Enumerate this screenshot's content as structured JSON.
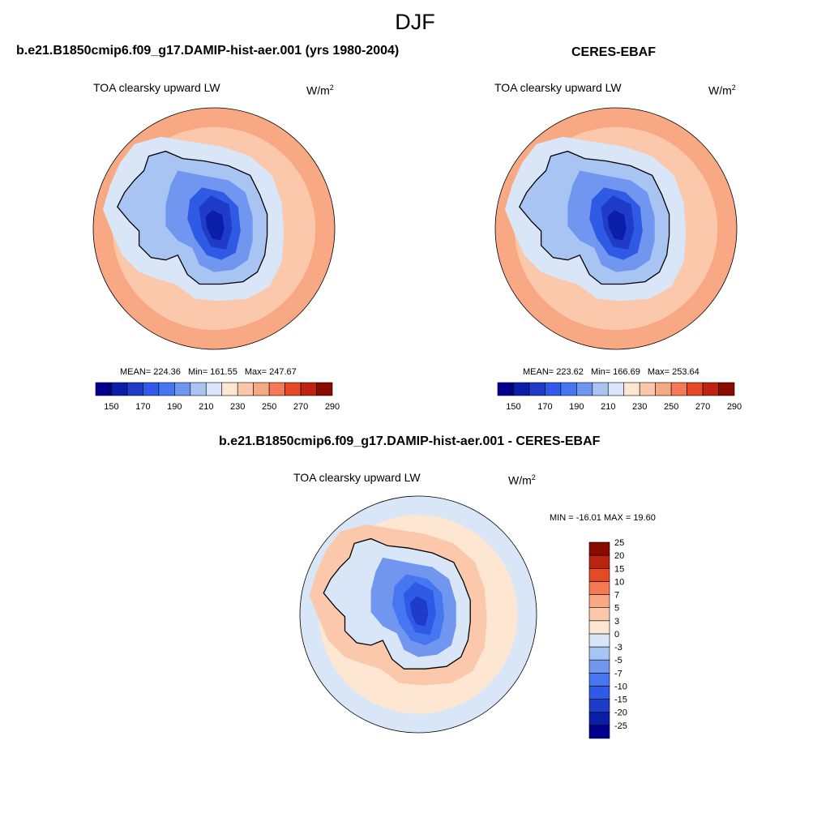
{
  "figure": {
    "title": "DJF",
    "units_base": "W/m",
    "units_exp": "2"
  },
  "panels": {
    "model": {
      "title": "b.e21.B1850cmip6.f09_g17.DAMIP-hist-aer.001 (yrs 1980-2004)",
      "variable": "TOA clearsky upward LW",
      "mean_text": "MEAN= 224.36",
      "min_text": "Min= 161.55",
      "max_text": "Max= 247.67"
    },
    "obs": {
      "title": "CERES-EBAF",
      "variable": "TOA clearsky upward LW",
      "mean_text": "MEAN= 223.62",
      "min_text": "Min= 166.69",
      "max_text": "Max= 253.64"
    },
    "diff": {
      "title": "b.e21.B1850cmip6.f09_g17.DAMIP-hist-aer.001 - CERES-EBAF",
      "variable": "TOA clearsky upward LW",
      "minmax_text": "MIN = -16.01 MAX =  19.60"
    }
  },
  "chart_data": [
    {
      "type": "heatmap",
      "name": "model",
      "projection": "south-polar-stereographic",
      "variable": "TOA clearsky upward LW",
      "units": "W/m2",
      "mean": 224.36,
      "min": 161.55,
      "max": 247.67,
      "colorbar": {
        "levels": [
          150,
          160,
          170,
          180,
          190,
          200,
          210,
          220,
          230,
          240,
          250,
          260,
          270,
          280,
          290
        ],
        "tick_labels": [
          "150",
          "170",
          "190",
          "210",
          "230",
          "250",
          "270",
          "290"
        ],
        "colors": [
          "#00008c",
          "#0a1ea8",
          "#1e3cc8",
          "#2e5ae6",
          "#4676f0",
          "#7096f0",
          "#a8c4f2",
          "#d8e6f8",
          "#fde6d2",
          "#fcc8ac",
          "#f9a884",
          "#f47a56",
          "#e44a26",
          "#bb2410",
          "#8a0a00"
        ]
      },
      "regions": {
        "ocean_far": 254,
        "ocean_mid": 240,
        "ocean_near": 226,
        "coast": 214,
        "plateau_edge": 200,
        "plateau": 186,
        "plateau_core": 173,
        "plateau_min": 164
      }
    },
    {
      "type": "heatmap",
      "name": "obs",
      "projection": "south-polar-stereographic",
      "variable": "TOA clearsky upward LW",
      "units": "W/m2",
      "mean": 223.62,
      "min": 166.69,
      "max": 253.64,
      "colorbar": {
        "levels": [
          150,
          160,
          170,
          180,
          190,
          200,
          210,
          220,
          230,
          240,
          250,
          260,
          270,
          280,
          290
        ],
        "tick_labels": [
          "150",
          "170",
          "190",
          "210",
          "230",
          "250",
          "270",
          "290"
        ],
        "colors": [
          "#00008c",
          "#0a1ea8",
          "#1e3cc8",
          "#2e5ae6",
          "#4676f0",
          "#7096f0",
          "#a8c4f2",
          "#d8e6f8",
          "#fde6d2",
          "#fcc8ac",
          "#f9a884",
          "#f47a56",
          "#e44a26",
          "#bb2410",
          "#8a0a00"
        ]
      },
      "regions": {
        "ocean_far": 254,
        "ocean_mid": 242,
        "ocean_near": 228,
        "coast": 214,
        "plateau_edge": 202,
        "plateau": 188,
        "plateau_core": 176,
        "plateau_min": 168
      }
    },
    {
      "type": "heatmap",
      "name": "difference",
      "projection": "south-polar-stereographic",
      "variable": "TOA clearsky upward LW",
      "units": "W/m2",
      "min": -16.01,
      "max": 19.6,
      "colorbar": {
        "levels": [
          -25,
          -20,
          -15,
          -10,
          -7,
          -5,
          -3,
          0,
          3,
          5,
          7,
          10,
          15,
          20,
          25
        ],
        "tick_labels": [
          "25",
          "20",
          "15",
          "10",
          "7",
          "5",
          "3",
          "0",
          "-3",
          "-5",
          "-7",
          "-10",
          "-15",
          "-20",
          "-25"
        ],
        "colors": [
          "#00008c",
          "#0a1ea8",
          "#1e3cc8",
          "#2e5ae6",
          "#4676f0",
          "#7096f0",
          "#a8c4f2",
          "#d8e6f8",
          "#fde6d2",
          "#fcc8ac",
          "#f9a884",
          "#f47a56",
          "#e44a26",
          "#bb2410",
          "#8a0a00"
        ]
      },
      "regions": {
        "ocean_far": 1.5,
        "ocean_mid": 4,
        "ocean_near": 6,
        "coast": 1,
        "plateau_edge": -4,
        "plateau": -7,
        "plateau_core": -9,
        "plateau_min": -11
      }
    }
  ]
}
